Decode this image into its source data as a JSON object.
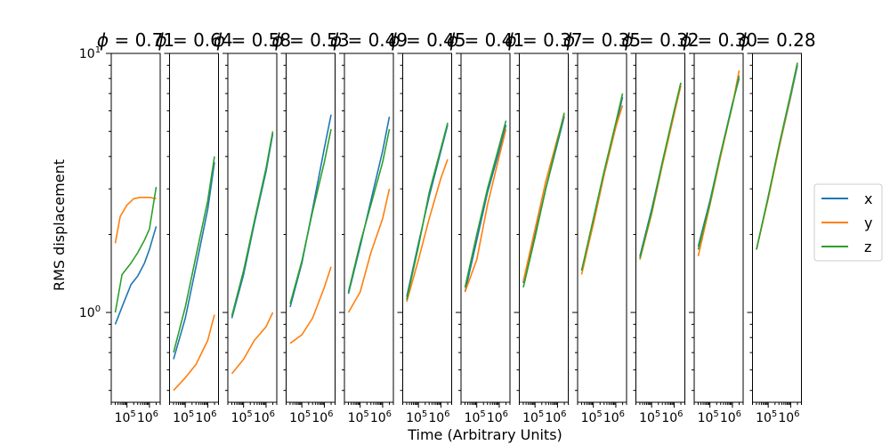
{
  "chart_data": {
    "type": "line",
    "xlabel": "Time (Arbitrary Units)",
    "ylabel": "RMS displacement",
    "x_scale": "log",
    "y_scale": "log",
    "xlim": [
      20000,
      3000000
    ],
    "ylim": [
      0.45,
      10
    ],
    "grid": false,
    "legend_position": "right",
    "x_tick_labels": [
      "10^5",
      "10^6"
    ],
    "y_tick_labels": [
      "10^0",
      "10^1"
    ],
    "colors": {
      "x": "#1f77b4",
      "y": "#ff7f0e",
      "z": "#2ca02c"
    },
    "legend": [
      {
        "name": "x",
        "color": "#1f77b4"
      },
      {
        "name": "y",
        "color": "#ff7f0e"
      },
      {
        "name": "z",
        "color": "#2ca02c"
      }
    ],
    "panels": [
      {
        "phi": "0.71",
        "x": [
          30000,
          2000000
        ],
        "series": [
          {
            "name": "x",
            "values": [
              [
                30000,
                0.9
              ],
              [
                60000,
                1.05
              ],
              [
                150000,
                1.28
              ],
              [
                300000,
                1.38
              ],
              [
                600000,
                1.55
              ],
              [
                1000000,
                1.75
              ],
              [
                2000000,
                2.15
              ]
            ]
          },
          {
            "name": "y",
            "values": [
              [
                30000,
                1.85
              ],
              [
                50000,
                2.35
              ],
              [
                100000,
                2.6
              ],
              [
                200000,
                2.75
              ],
              [
                400000,
                2.78
              ],
              [
                1000000,
                2.78
              ],
              [
                2000000,
                2.75
              ]
            ]
          },
          {
            "name": "z",
            "values": [
              [
                30000,
                1.0
              ],
              [
                60000,
                1.4
              ],
              [
                150000,
                1.55
              ],
              [
                300000,
                1.7
              ],
              [
                600000,
                1.9
              ],
              [
                1000000,
                2.1
              ],
              [
                2000000,
                3.05
              ]
            ]
          }
        ]
      },
      {
        "phi": "0.64",
        "x": [
          30000,
          2000000
        ],
        "series": [
          {
            "name": "x",
            "values": [
              [
                30000,
                0.66
              ],
              [
                100000,
                0.95
              ],
              [
                300000,
                1.5
              ],
              [
                1000000,
                2.5
              ],
              [
                2000000,
                3.8
              ]
            ]
          },
          {
            "name": "y",
            "values": [
              [
                30000,
                0.5
              ],
              [
                100000,
                0.56
              ],
              [
                300000,
                0.63
              ],
              [
                1000000,
                0.78
              ],
              [
                2000000,
                0.98
              ]
            ]
          },
          {
            "name": "z",
            "values": [
              [
                30000,
                0.7
              ],
              [
                100000,
                1.05
              ],
              [
                300000,
                1.65
              ],
              [
                1000000,
                2.7
              ],
              [
                2000000,
                4.0
              ]
            ]
          }
        ]
      },
      {
        "phi": "0.58",
        "x": [
          30000,
          2000000
        ],
        "series": [
          {
            "name": "x",
            "values": [
              [
                30000,
                0.95
              ],
              [
                100000,
                1.4
              ],
              [
                300000,
                2.2
              ],
              [
                1000000,
                3.5
              ],
              [
                2000000,
                4.9
              ]
            ]
          },
          {
            "name": "y",
            "values": [
              [
                30000,
                0.58
              ],
              [
                100000,
                0.66
              ],
              [
                300000,
                0.78
              ],
              [
                1000000,
                0.88
              ],
              [
                2000000,
                1.0
              ]
            ]
          },
          {
            "name": "z",
            "values": [
              [
                30000,
                0.97
              ],
              [
                100000,
                1.45
              ],
              [
                300000,
                2.25
              ],
              [
                1000000,
                3.6
              ],
              [
                2000000,
                5.0
              ]
            ]
          }
        ]
      },
      {
        "phi": "0.53",
        "x": [
          30000,
          2000000
        ],
        "series": [
          {
            "name": "x",
            "values": [
              [
                30000,
                1.05
              ],
              [
                100000,
                1.55
              ],
              [
                300000,
                2.5
              ],
              [
                1000000,
                4.3
              ],
              [
                2000000,
                5.8
              ]
            ]
          },
          {
            "name": "y",
            "values": [
              [
                30000,
                0.76
              ],
              [
                100000,
                0.82
              ],
              [
                300000,
                0.95
              ],
              [
                1000000,
                1.25
              ],
              [
                2000000,
                1.5
              ]
            ]
          },
          {
            "name": "z",
            "values": [
              [
                30000,
                1.08
              ],
              [
                100000,
                1.58
              ],
              [
                300000,
                2.45
              ],
              [
                1000000,
                3.8
              ],
              [
                2000000,
                5.1
              ]
            ]
          }
        ]
      },
      {
        "phi": "0.49",
        "x": [
          30000,
          2000000
        ],
        "series": [
          {
            "name": "x",
            "values": [
              [
                30000,
                1.18
              ],
              [
                100000,
                1.8
              ],
              [
                300000,
                2.7
              ],
              [
                1000000,
                4.2
              ],
              [
                2000000,
                5.7
              ]
            ]
          },
          {
            "name": "y",
            "values": [
              [
                30000,
                1.0
              ],
              [
                100000,
                1.2
              ],
              [
                300000,
                1.7
              ],
              [
                1000000,
                2.3
              ],
              [
                2000000,
                3.0
              ]
            ]
          },
          {
            "name": "z",
            "values": [
              [
                30000,
                1.2
              ],
              [
                100000,
                1.85
              ],
              [
                300000,
                2.6
              ],
              [
                1000000,
                3.8
              ],
              [
                2000000,
                5.1
              ]
            ]
          }
        ]
      },
      {
        "phi": "0.45",
        "x": [
          30000,
          2000000
        ],
        "series": [
          {
            "name": "x",
            "values": [
              [
                30000,
                1.15
              ],
              [
                100000,
                1.85
              ],
              [
                300000,
                2.8
              ],
              [
                1000000,
                4.2
              ],
              [
                2000000,
                5.3
              ]
            ]
          },
          {
            "name": "y",
            "values": [
              [
                30000,
                1.1
              ],
              [
                100000,
                1.6
              ],
              [
                300000,
                2.3
              ],
              [
                1000000,
                3.3
              ],
              [
                2000000,
                3.9
              ]
            ]
          },
          {
            "name": "z",
            "values": [
              [
                30000,
                1.12
              ],
              [
                100000,
                1.8
              ],
              [
                300000,
                2.9
              ],
              [
                1000000,
                4.3
              ],
              [
                2000000,
                5.4
              ]
            ]
          }
        ]
      },
      {
        "phi": "0.41",
        "x": [
          30000,
          2000000
        ],
        "series": [
          {
            "name": "x",
            "values": [
              [
                30000,
                1.2
              ],
              [
                100000,
                1.9
              ],
              [
                300000,
                2.9
              ],
              [
                1000000,
                4.2
              ],
              [
                2000000,
                5.3
              ]
            ]
          },
          {
            "name": "y",
            "values": [
              [
                30000,
                1.2
              ],
              [
                100000,
                1.6
              ],
              [
                300000,
                2.6
              ],
              [
                1000000,
                4.0
              ],
              [
                2000000,
                5.1
              ]
            ]
          },
          {
            "name": "z",
            "values": [
              [
                30000,
                1.25
              ],
              [
                100000,
                2.0
              ],
              [
                300000,
                3.0
              ],
              [
                1000000,
                4.4
              ],
              [
                2000000,
                5.5
              ]
            ]
          }
        ]
      },
      {
        "phi": "0.37",
        "x": [
          30000,
          2000000
        ],
        "series": [
          {
            "name": "x",
            "values": [
              [
                30000,
                1.3
              ],
              [
                100000,
                2.0
              ],
              [
                300000,
                3.0
              ],
              [
                1000000,
                4.5
              ],
              [
                2000000,
                5.7
              ]
            ]
          },
          {
            "name": "y",
            "values": [
              [
                30000,
                1.32
              ],
              [
                100000,
                2.1
              ],
              [
                300000,
                3.2
              ],
              [
                1000000,
                4.7
              ],
              [
                2000000,
                5.8
              ]
            ]
          },
          {
            "name": "z",
            "values": [
              [
                30000,
                1.25
              ],
              [
                100000,
                1.95
              ],
              [
                300000,
                3.0
              ],
              [
                1000000,
                4.6
              ],
              [
                2000000,
                5.9
              ]
            ]
          }
        ]
      },
      {
        "phi": "0.35",
        "x": [
          30000,
          2000000
        ],
        "series": [
          {
            "name": "x",
            "values": [
              [
                30000,
                1.45
              ],
              [
                100000,
                2.2
              ],
              [
                300000,
                3.4
              ],
              [
                1000000,
                5.2
              ],
              [
                2000000,
                6.8
              ]
            ]
          },
          {
            "name": "y",
            "values": [
              [
                30000,
                1.4
              ],
              [
                100000,
                2.2
              ],
              [
                300000,
                3.4
              ],
              [
                1000000,
                5.2
              ],
              [
                2000000,
                6.3
              ]
            ]
          },
          {
            "name": "z",
            "values": [
              [
                30000,
                1.45
              ],
              [
                100000,
                2.3
              ],
              [
                300000,
                3.5
              ],
              [
                1000000,
                5.4
              ],
              [
                2000000,
                7.0
              ]
            ]
          }
        ]
      },
      {
        "phi": "0.32",
        "x": [
          30000,
          2000000
        ],
        "series": [
          {
            "name": "x",
            "values": [
              [
                30000,
                1.65
              ],
              [
                100000,
                2.5
              ],
              [
                300000,
                3.8
              ],
              [
                1000000,
                5.9
              ],
              [
                2000000,
                7.7
              ]
            ]
          },
          {
            "name": "y",
            "values": [
              [
                30000,
                1.6
              ],
              [
                100000,
                2.4
              ],
              [
                300000,
                3.7
              ],
              [
                1000000,
                5.8
              ],
              [
                2000000,
                7.5
              ]
            ]
          },
          {
            "name": "z",
            "values": [
              [
                30000,
                1.62
              ],
              [
                100000,
                2.45
              ],
              [
                300000,
                3.8
              ],
              [
                1000000,
                6.0
              ],
              [
                2000000,
                7.7
              ]
            ]
          }
        ]
      },
      {
        "phi": "0.30",
        "x": [
          30000,
          2000000
        ],
        "series": [
          {
            "name": "x",
            "values": [
              [
                30000,
                1.8
              ],
              [
                100000,
                2.7
              ],
              [
                300000,
                4.1
              ],
              [
                1000000,
                6.4
              ],
              [
                2000000,
                8.0
              ]
            ]
          },
          {
            "name": "y",
            "values": [
              [
                30000,
                1.65
              ],
              [
                100000,
                2.6
              ],
              [
                300000,
                4.0
              ],
              [
                1000000,
                6.3
              ],
              [
                2000000,
                8.6
              ]
            ]
          },
          {
            "name": "z",
            "values": [
              [
                30000,
                1.75
              ],
              [
                100000,
                2.65
              ],
              [
                300000,
                4.1
              ],
              [
                1000000,
                6.3
              ],
              [
                2000000,
                8.2
              ]
            ]
          }
        ]
      },
      {
        "phi": "0.28",
        "x": [
          30000,
          2000000
        ],
        "series": [
          {
            "name": "x",
            "values": [
              [
                30000,
                1.75
              ],
              [
                100000,
                2.8
              ],
              [
                300000,
                4.3
              ],
              [
                1000000,
                6.8
              ],
              [
                2000000,
                9.0
              ]
            ]
          },
          {
            "name": "y",
            "values": [
              [
                30000,
                1.75
              ],
              [
                100000,
                2.75
              ],
              [
                300000,
                4.3
              ],
              [
                1000000,
                6.9
              ],
              [
                2000000,
                9.2
              ]
            ]
          },
          {
            "name": "z",
            "values": [
              [
                30000,
                1.75
              ],
              [
                100000,
                2.8
              ],
              [
                300000,
                4.4
              ],
              [
                1000000,
                7.0
              ],
              [
                2000000,
                9.2
              ]
            ]
          }
        ]
      }
    ]
  }
}
